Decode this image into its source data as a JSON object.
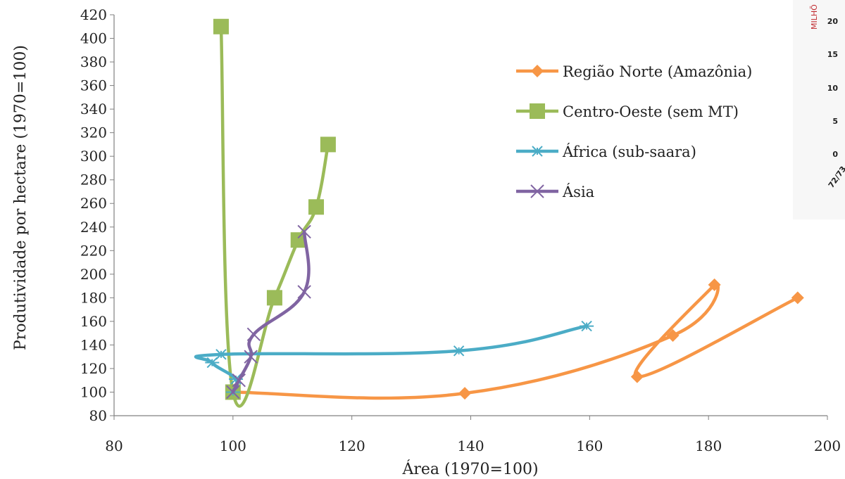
{
  "chart_data": {
    "type": "scatter",
    "mode": "lines+markers (smoothed)",
    "xlabel": "Área (1970=100)",
    "ylabel": "Produtividade por hectare (1970=100)",
    "xlim": [
      80,
      200
    ],
    "ylim": [
      80,
      420
    ],
    "xticks": [
      80,
      100,
      120,
      140,
      160,
      180,
      200
    ],
    "yticks": [
      80,
      100,
      120,
      140,
      160,
      180,
      200,
      220,
      240,
      260,
      280,
      300,
      320,
      340,
      360,
      380,
      400,
      420
    ],
    "grid": false,
    "legend_position": "top-right",
    "series": [
      {
        "name": "Região Norte (Amazônia)",
        "color": "#f79646",
        "marker": "diamond",
        "points": [
          [
            100,
            100
          ],
          [
            139,
            99
          ],
          [
            174,
            148
          ],
          [
            181,
            191
          ],
          [
            168,
            113
          ],
          [
            195,
            180
          ]
        ]
      },
      {
        "name": "Centro-Oeste (sem MT)",
        "color": "#9bbb59",
        "marker": "square",
        "points": [
          [
            116,
            310
          ],
          [
            114,
            257
          ],
          [
            111,
            229
          ],
          [
            107,
            180
          ],
          [
            100,
            100
          ],
          [
            98,
            410
          ]
        ]
      },
      {
        "name": "África (sub-saara)",
        "color": "#4bacc6",
        "marker": "asterisk",
        "points": [
          [
            159.5,
            156
          ],
          [
            138,
            135
          ],
          [
            98,
            132
          ],
          [
            96.5,
            125
          ],
          [
            100.5,
            111
          ],
          [
            100,
            100
          ]
        ]
      },
      {
        "name": "Ásia",
        "color": "#8064a2",
        "marker": "x",
        "points": [
          [
            100,
            100
          ],
          [
            101,
            110
          ],
          [
            103,
            130
          ],
          [
            103.5,
            149
          ],
          [
            112,
            185
          ],
          [
            112,
            236
          ]
        ]
      }
    ]
  },
  "inset": {
    "title": "MILHÕ",
    "ticks": [
      "20",
      "15",
      "10",
      "5",
      "0"
    ],
    "category_label": "72/73"
  }
}
